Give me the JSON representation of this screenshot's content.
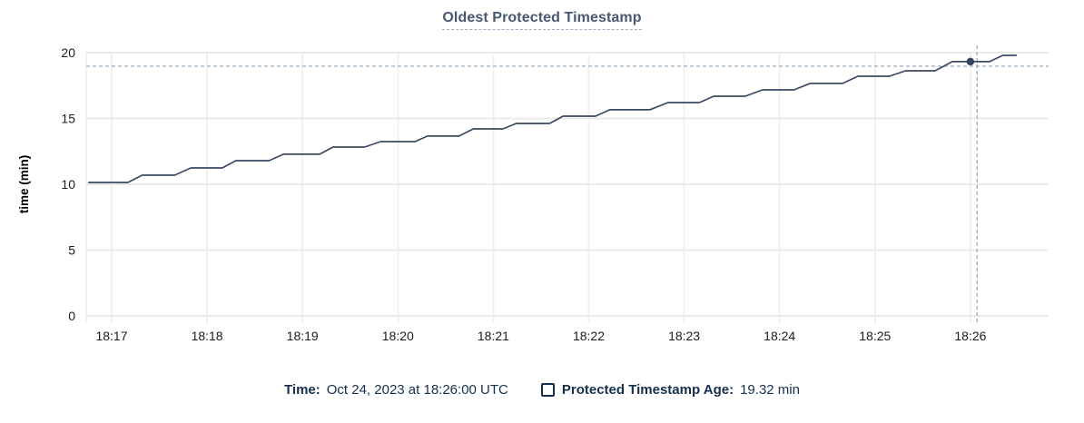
{
  "title": "Oldest Protected Timestamp",
  "footer": {
    "time_label": "Time:",
    "time_value": "Oct 24, 2023 at 18:26:00 UTC",
    "series_label": "Protected Timestamp Age:",
    "series_value": "19.32 min"
  },
  "colors": {
    "title": "#475872",
    "legend_text": "#15304c",
    "line": "#3a4a63",
    "dot": "#36455e",
    "crosshair": "#9fb2c2",
    "grid_major": "#eaeaea",
    "grid_minor": "#f1f1f1",
    "tick_text": "#1c1c1c",
    "axis_label": "#000000"
  },
  "chart_data": {
    "type": "line",
    "title": "Oldest Protected Timestamp",
    "xlabel": "",
    "ylabel": "time (min)",
    "ylim": [
      0,
      20
    ],
    "y_ticks": [
      0,
      5,
      10,
      15,
      20
    ],
    "x_ticks": [
      "18:17",
      "18:18",
      "18:19",
      "18:20",
      "18:21",
      "18:22",
      "18:23",
      "18:24",
      "18:25",
      "18:26"
    ],
    "x_unit": "minutes offset from 18:17 UTC",
    "grid": true,
    "legend_position": "bottom",
    "series": [
      {
        "name": "Protected Timestamp Age",
        "unit": "min",
        "points": [
          [
            -0.24,
            10.14
          ],
          [
            0.17,
            10.14
          ],
          [
            0.32,
            10.69
          ],
          [
            0.66,
            10.69
          ],
          [
            0.83,
            11.24
          ],
          [
            1.16,
            11.24
          ],
          [
            1.3,
            11.79
          ],
          [
            1.65,
            11.79
          ],
          [
            1.8,
            12.28
          ],
          [
            2.18,
            12.28
          ],
          [
            2.32,
            12.83
          ],
          [
            2.65,
            12.83
          ],
          [
            2.82,
            13.24
          ],
          [
            3.18,
            13.24
          ],
          [
            3.31,
            13.66
          ],
          [
            3.64,
            13.66
          ],
          [
            3.79,
            14.21
          ],
          [
            4.1,
            14.21
          ],
          [
            4.24,
            14.62
          ],
          [
            4.59,
            14.62
          ],
          [
            4.73,
            15.17
          ],
          [
            5.07,
            15.17
          ],
          [
            5.22,
            15.66
          ],
          [
            5.64,
            15.66
          ],
          [
            5.83,
            16.21
          ],
          [
            6.16,
            16.21
          ],
          [
            6.31,
            16.69
          ],
          [
            6.64,
            16.69
          ],
          [
            6.82,
            17.17
          ],
          [
            7.15,
            17.17
          ],
          [
            7.32,
            17.66
          ],
          [
            7.66,
            17.66
          ],
          [
            7.82,
            18.21
          ],
          [
            8.15,
            18.21
          ],
          [
            8.32,
            18.62
          ],
          [
            8.63,
            18.62
          ],
          [
            8.81,
            19.32
          ],
          [
            9.2,
            19.32
          ],
          [
            9.34,
            19.79
          ],
          [
            9.48,
            19.79
          ]
        ]
      }
    ],
    "marker": {
      "x_min": 9.0,
      "value": 19.32,
      "time_label": "18:26:00"
    },
    "crosshair": {
      "x_min": 9.07,
      "y_value": 18.97
    }
  }
}
